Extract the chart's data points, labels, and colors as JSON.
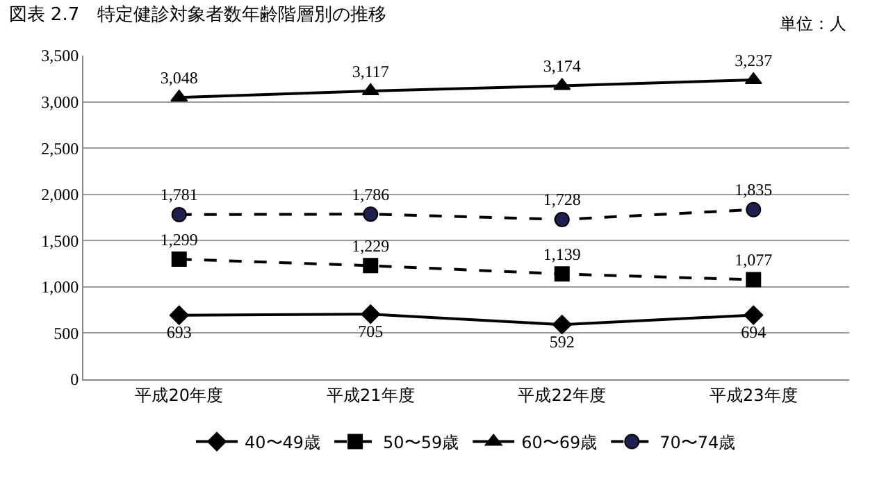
{
  "chart_data": {
    "type": "line",
    "title": "図表 2.7　特定健診対象者数年齢階層別の推移",
    "annotations": [
      "単位：人"
    ],
    "categories": [
      "平成20年度",
      "平成21年度",
      "平成22年度",
      "平成23年度"
    ],
    "series": [
      {
        "name": "40〜49歳",
        "color": "#000000",
        "values": [
          693,
          705,
          592,
          694
        ],
        "value_labels": [
          "693",
          "705",
          "592",
          "694"
        ],
        "marker": "diamond",
        "line_style": "solid"
      },
      {
        "name": "50〜59歳",
        "color": "#000000",
        "values": [
          1299,
          1229,
          1139,
          1077
        ],
        "value_labels": [
          "1,299",
          "1,229",
          "1,139",
          "1,077"
        ],
        "marker": "square",
        "line_style": "dashed"
      },
      {
        "name": "60〜69歳",
        "color": "#000000",
        "values": [
          3048,
          3117,
          3174,
          3237
        ],
        "value_labels": [
          "3,048",
          "3,117",
          "3,174",
          "3,237"
        ],
        "marker": "triangle",
        "line_style": "solid"
      },
      {
        "name": "70〜74歳",
        "color": "#1f2050",
        "values": [
          1781,
          1786,
          1728,
          1835
        ],
        "value_labels": [
          "1,781",
          "1,786",
          "1,728",
          "1,835"
        ],
        "marker": "circle",
        "line_style": "dashed"
      }
    ],
    "ylim": [
      0,
      3500
    ],
    "yticks": [
      0,
      500,
      {
        "value": 1000,
        "label": "1,000"
      },
      {
        "value": 1500,
        "label": "1,500"
      },
      {
        "value": 2000,
        "label": "2,000"
      },
      {
        "value": 2500,
        "label": "2,500"
      },
      {
        "value": 3000,
        "label": "3,000"
      },
      {
        "value": 3500,
        "label": "3,500"
      }
    ],
    "grid": "y",
    "legend": "bottom"
  }
}
